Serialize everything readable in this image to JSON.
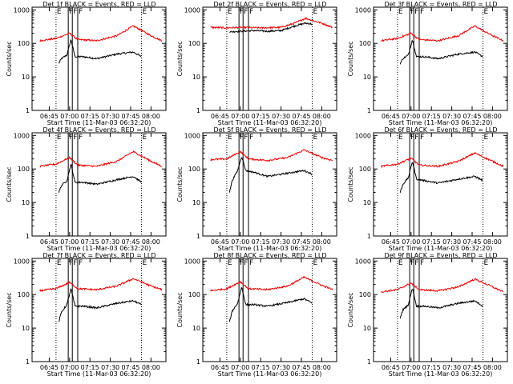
{
  "colors": {
    "events": "#000000",
    "lld": "#ee0000",
    "axes": "#000000",
    "background": "#ffffff"
  },
  "chart_data": {
    "type": "line",
    "scale_y": "log",
    "grid": false,
    "xlabel": "Start Time (11-Mar-03 06:32:20)",
    "ylabel": "Counts/sec",
    "x_tick_labels": [
      "06:45",
      "07:00",
      "07:15",
      "07:30",
      "07:45",
      "08:00"
    ],
    "y_tick_labels": [
      "1",
      "10",
      "100",
      "1000"
    ],
    "ylim": [
      1,
      1200
    ],
    "xlim": [
      "06:32:20",
      "08:11:00"
    ],
    "markers": [
      {
        "label": "E",
        "time": "06:50",
        "style": "dotted"
      },
      {
        "label": "F",
        "time": "06:59",
        "style": "solid"
      },
      {
        "label": "F",
        "time": "07:02",
        "style": "solid"
      },
      {
        "label": "F",
        "time": "07:06",
        "style": "solid"
      },
      {
        "label": "E",
        "time": "07:53",
        "style": "dotted"
      }
    ],
    "panels": [
      {
        "title": "Det 1f BLACK = Events, RED = LLD",
        "series": [
          {
            "name": "Events",
            "x": [
              "06:52",
              "06:54",
              "06:58",
              "07:01",
              "07:04",
              "07:10",
              "07:20",
              "07:35",
              "07:47",
              "07:53"
            ],
            "values": [
              25,
              35,
              45,
              130,
              40,
              40,
              35,
              48,
              55,
              40
            ]
          },
          {
            "name": "LLD",
            "x": [
              "06:38",
              "06:50",
              "07:00",
              "07:06",
              "07:20",
              "07:35",
              "07:47",
              "08:00",
              "08:08"
            ],
            "values": [
              120,
              140,
              200,
              130,
              120,
              170,
              330,
              170,
              120
            ]
          }
        ]
      },
      {
        "title": "Det 2f BLACK = Events, RED = LLD",
        "series": [
          {
            "name": "Events",
            "x": [
              "06:52",
              "07:00",
              "07:10",
              "07:20",
              "07:30",
              "07:40",
              "07:48",
              "07:53"
            ],
            "values": [
              220,
              230,
              240,
              230,
              240,
              330,
              400,
              380
            ]
          },
          {
            "name": "LLD",
            "x": [
              "06:38",
              "06:50",
              "07:00",
              "07:15",
              "07:30",
              "07:40",
              "07:48",
              "08:00",
              "08:08"
            ],
            "values": [
              300,
              290,
              300,
              290,
              300,
              400,
              560,
              400,
              300
            ]
          }
        ]
      },
      {
        "title": "Det 3f BLACK = Events, RED = LLD",
        "series": [
          {
            "name": "Events",
            "x": [
              "06:52",
              "06:54",
              "06:58",
              "07:01",
              "07:04",
              "07:10",
              "07:20",
              "07:35",
              "07:47",
              "07:53"
            ],
            "values": [
              25,
              35,
              45,
              130,
              40,
              40,
              35,
              48,
              55,
              40
            ]
          },
          {
            "name": "LLD",
            "x": [
              "06:38",
              "06:50",
              "07:00",
              "07:06",
              "07:20",
              "07:35",
              "07:47",
              "08:00",
              "08:08"
            ],
            "values": [
              120,
              140,
              200,
              130,
              120,
              170,
              330,
              170,
              120
            ]
          }
        ]
      },
      {
        "title": "Det 4f BLACK = Events, RED = LLD",
        "series": [
          {
            "name": "Events",
            "x": [
              "06:52",
              "06:54",
              "06:58",
              "07:01",
              "07:04",
              "07:10",
              "07:20",
              "07:35",
              "07:47",
              "07:53"
            ],
            "values": [
              20,
              32,
              45,
              140,
              40,
              40,
              35,
              48,
              60,
              40
            ]
          },
          {
            "name": "LLD",
            "x": [
              "06:38",
              "06:50",
              "07:00",
              "07:06",
              "07:20",
              "07:35",
              "07:47",
              "08:00",
              "08:08"
            ],
            "values": [
              120,
              140,
              220,
              130,
              120,
              170,
              330,
              170,
              120
            ]
          }
        ]
      },
      {
        "title": "Det 5f BLACK = Events, RED = LLD",
        "series": [
          {
            "name": "Events",
            "x": [
              "06:52",
              "06:54",
              "06:58",
              "07:01",
              "07:04",
              "07:10",
              "07:20",
              "07:35",
              "07:47",
              "07:53"
            ],
            "values": [
              20,
              45,
              90,
              240,
              90,
              80,
              60,
              75,
              90,
              70
            ]
          },
          {
            "name": "LLD",
            "x": [
              "06:38",
              "06:50",
              "07:00",
              "07:06",
              "07:20",
              "07:35",
              "07:47",
              "08:00",
              "08:08"
            ],
            "values": [
              190,
              200,
              330,
              200,
              180,
              220,
              370,
              220,
              180
            ]
          }
        ]
      },
      {
        "title": "Det 6f BLACK = Events, RED = LLD",
        "series": [
          {
            "name": "Events",
            "x": [
              "06:52",
              "06:54",
              "06:58",
              "07:01",
              "07:04",
              "07:10",
              "07:20",
              "07:35",
              "07:47",
              "07:53"
            ],
            "values": [
              20,
              35,
              55,
              170,
              50,
              45,
              38,
              50,
              60,
              45
            ]
          },
          {
            "name": "LLD",
            "x": [
              "06:38",
              "06:50",
              "07:00",
              "07:06",
              "07:20",
              "07:35",
              "07:47",
              "08:00",
              "08:08"
            ],
            "values": [
              120,
              140,
              210,
              130,
              120,
              170,
              300,
              170,
              120
            ]
          }
        ]
      },
      {
        "title": "Det 7f BLACK = Events, RED = LLD",
        "series": [
          {
            "name": "Events",
            "x": [
              "06:52",
              "06:54",
              "06:58",
              "07:01",
              "07:04",
              "07:10",
              "07:20",
              "07:35",
              "07:47",
              "07:53"
            ],
            "values": [
              15,
              30,
              50,
              150,
              45,
              45,
              40,
              55,
              65,
              50
            ]
          },
          {
            "name": "LLD",
            "x": [
              "06:38",
              "06:50",
              "07:00",
              "07:06",
              "07:20",
              "07:35",
              "07:47",
              "08:00",
              "08:08"
            ],
            "values": [
              130,
              150,
              230,
              150,
              140,
              180,
              300,
              180,
              140
            ]
          }
        ]
      },
      {
        "title": "Det 8f BLACK = Events, RED = LLD",
        "series": [
          {
            "name": "Events",
            "x": [
              "06:52",
              "06:54",
              "06:58",
              "07:01",
              "07:04",
              "07:10",
              "07:20",
              "07:35",
              "07:47",
              "07:53"
            ],
            "values": [
              15,
              32,
              55,
              170,
              50,
              50,
              45,
              58,
              75,
              55
            ]
          },
          {
            "name": "LLD",
            "x": [
              "06:38",
              "06:50",
              "07:00",
              "07:06",
              "07:20",
              "07:35",
              "07:47",
              "08:00",
              "08:08"
            ],
            "values": [
              130,
              150,
              240,
              150,
              140,
              180,
              330,
              190,
              140
            ]
          }
        ]
      },
      {
        "title": "Det 9f BLACK = Events, RED = LLD",
        "series": [
          {
            "name": "Events",
            "x": [
              "06:52",
              "06:54",
              "06:58",
              "07:01",
              "07:04",
              "07:10",
              "07:20",
              "07:35",
              "07:47",
              "07:53"
            ],
            "values": [
              20,
              35,
              50,
              160,
              45,
              45,
              40,
              55,
              65,
              45
            ]
          },
          {
            "name": "LLD",
            "x": [
              "06:38",
              "06:50",
              "07:00",
              "07:06",
              "07:20",
              "07:35",
              "07:47",
              "08:00",
              "08:08"
            ],
            "values": [
              120,
              140,
              220,
              140,
              130,
              170,
              290,
              170,
              120
            ]
          }
        ]
      }
    ]
  }
}
